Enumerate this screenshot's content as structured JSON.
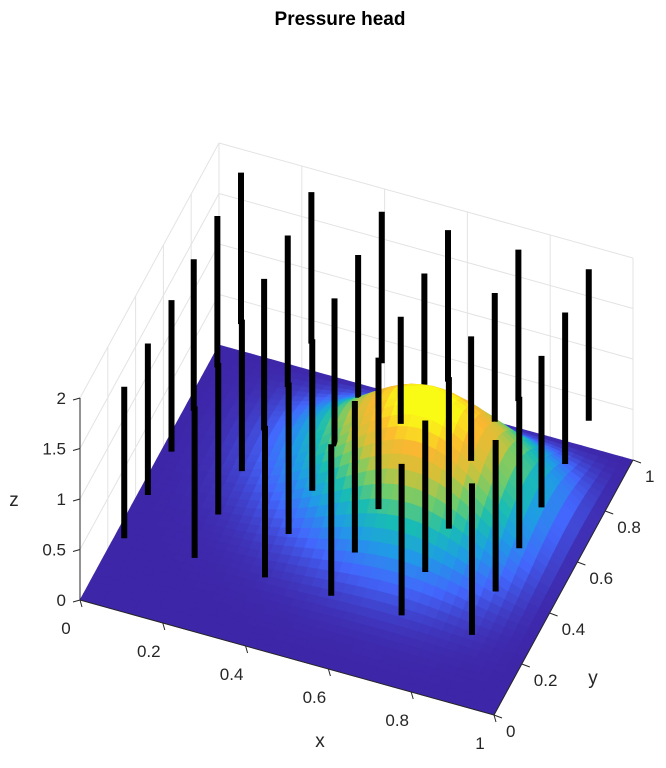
{
  "chart_data": {
    "type": "surface",
    "title": "Pressure head",
    "xlabel": "x",
    "ylabel": "y",
    "zlabel": "z",
    "xlim": [
      0,
      1
    ],
    "ylim": [
      0,
      1
    ],
    "zlim": [
      0,
      2
    ],
    "x_ticks": [
      "0",
      "0.2",
      "0.4",
      "0.6",
      "0.8",
      "1"
    ],
    "y_ticks": [
      "0",
      "0.2",
      "0.4",
      "0.6",
      "0.8",
      "1"
    ],
    "z_ticks": [
      "0",
      "0.5",
      "1",
      "1.5",
      "2"
    ],
    "grid": true,
    "colormap": "parula",
    "colormap_stops": [
      "#3e26a8",
      "#4367fd",
      "#1f9ce6",
      "#19bcb4",
      "#6ccc6d",
      "#cfc23a",
      "#fbb731",
      "#f9fb15"
    ],
    "surface_peaks": [
      {
        "x": 0.74,
        "y": 0.65,
        "z": 0.95,
        "spread": 0.2
      },
      {
        "x": 0.52,
        "y": 0.82,
        "z": 0.75,
        "spread": 0.2
      },
      {
        "x": 0.88,
        "y": 0.85,
        "z": 0.55,
        "spread": 0.13
      }
    ],
    "wells": {
      "description": "vertical black bars",
      "x": [
        0.08,
        0.25,
        0.42,
        0.58,
        0.75,
        0.92
      ],
      "y": [
        0.08,
        0.25,
        0.42,
        0.58,
        0.75,
        0.92
      ],
      "z_range": [
        0.5,
        2.0
      ]
    }
  }
}
